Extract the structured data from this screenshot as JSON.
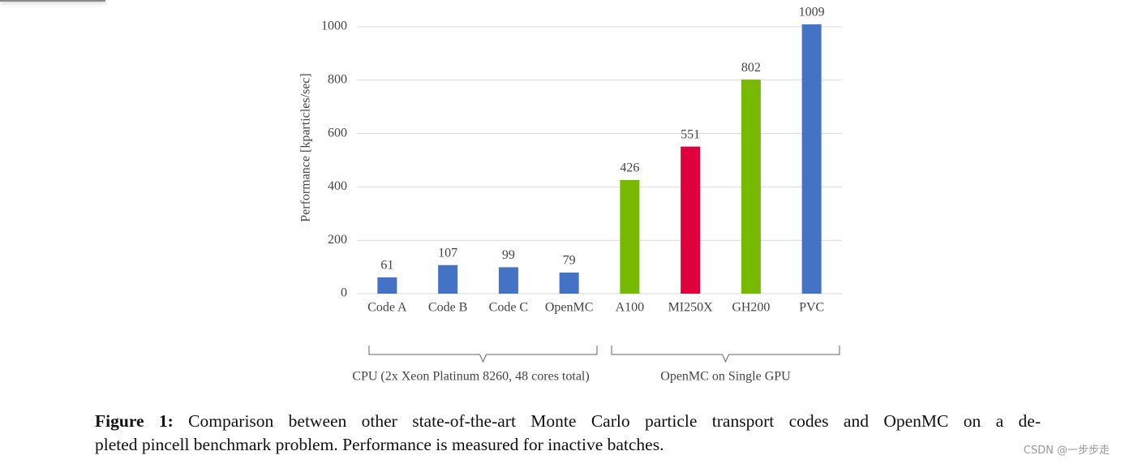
{
  "chart_data": {
    "type": "bar",
    "y_label": "Performance [kparticles/sec]",
    "categories": [
      "Code A",
      "Code B",
      "Code C",
      "OpenMC",
      "A100",
      "MI250X",
      "GH200",
      "PVC"
    ],
    "values": [
      61,
      107,
      99,
      79,
      426,
      551,
      802,
      1009
    ],
    "colors": [
      "#4472c4",
      "#4472c4",
      "#4472c4",
      "#4472c4",
      "#76b900",
      "#e0003c",
      "#76b900",
      "#4472c4"
    ],
    "ylim": [
      0,
      1000
    ],
    "yticks": [
      0,
      200,
      400,
      600,
      800,
      1000
    ],
    "grid": true,
    "groups": [
      {
        "label": "CPU (2x Xeon Platinum 8260, 48 cores total)",
        "categories": [
          "Code A",
          "Code B",
          "Code C",
          "OpenMC"
        ]
      },
      {
        "label": "OpenMC on Single GPU",
        "categories": [
          "A100",
          "MI250X",
          "GH200",
          "PVC"
        ]
      }
    ]
  },
  "caption": {
    "label": "Figure 1:",
    "lines": [
      "Comparison between other state-of-the-art Monte Carlo particle transport codes and OpenMC on a de-",
      "pleted pincell benchmark problem. Performance is measured for inactive batches."
    ]
  },
  "watermark": "CSDN @一步步走"
}
